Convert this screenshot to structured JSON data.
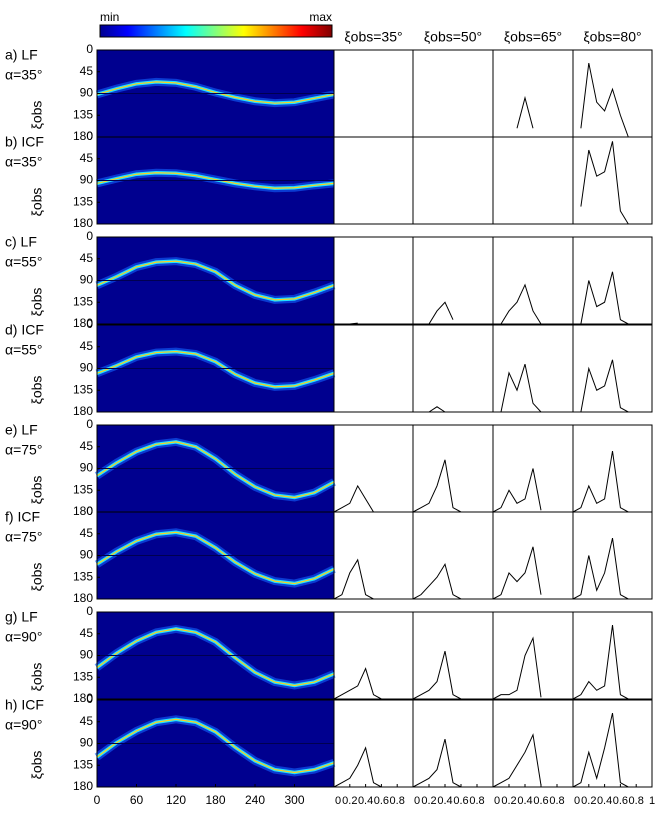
{
  "colorbar": {
    "min_label": "min",
    "max_label": "max"
  },
  "column_headers": [
    "ξobs=35°",
    "ξobs=50°",
    "ξobs=65°",
    "ξobs=80°"
  ],
  "heatmap_axes": {
    "ylabel": "ξobs",
    "xlim": [
      0,
      360
    ],
    "ylim": [
      0,
      180
    ],
    "xticks": [
      0,
      60,
      120,
      180,
      240,
      300
    ],
    "yticks": [
      0,
      45,
      90,
      135,
      180
    ],
    "ridge_phi": [
      0,
      30,
      60,
      90,
      120,
      150,
      180,
      210,
      240,
      270,
      300,
      330,
      360
    ]
  },
  "profile_axes": {
    "xlim": [
      0,
      1
    ],
    "ylim": [
      0,
      1
    ],
    "xticks": [
      0,
      0.2,
      0.4,
      0.6,
      0.8,
      1
    ],
    "x": [
      0,
      0.1,
      0.2,
      0.3,
      0.4,
      0.5,
      0.6,
      0.7,
      0.8,
      0.9,
      1
    ]
  },
  "rows": [
    {
      "label": "a) LF",
      "alpha": "α=35°",
      "ridge": [
        92,
        80,
        70,
        66,
        68,
        76,
        88,
        98,
        106,
        110,
        108,
        100,
        92
      ],
      "profiles": [
        [],
        [],
        [
          null,
          null,
          null,
          0.1,
          0.45,
          0.1,
          null,
          null,
          null,
          null,
          null
        ],
        [
          null,
          0.1,
          0.85,
          0.4,
          0.3,
          0.55,
          0.25,
          0.0,
          null,
          null,
          null
        ]
      ]
    },
    {
      "label": "b) ICF",
      "alpha": "α=35°",
      "ridge": [
        96,
        86,
        77,
        74,
        75,
        80,
        88,
        96,
        102,
        106,
        105,
        100,
        96
      ],
      "profiles": [
        [],
        [],
        [
          null,
          null,
          null,
          null,
          0.01,
          null,
          null,
          null,
          null,
          null,
          null
        ],
        [
          null,
          0.2,
          0.85,
          0.55,
          0.6,
          0.95,
          0.15,
          0.0,
          null,
          null,
          null
        ]
      ]
    },
    {
      "label": "c) LF",
      "alpha": "α=55°",
      "ridge": [
        100,
        82,
        62,
        52,
        50,
        56,
        72,
        100,
        120,
        130,
        128,
        115,
        100
      ],
      "profiles": [
        [
          null,
          0.0,
          0.0,
          0.01,
          null,
          null,
          null,
          null,
          null,
          null,
          null
        ],
        [
          null,
          null,
          0.0,
          0.15,
          0.25,
          0.05,
          null,
          null,
          null,
          null,
          null
        ],
        [
          null,
          0.0,
          0.15,
          0.25,
          0.45,
          0.15,
          0.0,
          null,
          null,
          null,
          null
        ],
        [
          null,
          0.0,
          0.5,
          0.2,
          0.25,
          0.6,
          0.05,
          0.0,
          null,
          null,
          null
        ]
      ]
    },
    {
      "label": "d) ICF",
      "alpha": "α=55°",
      "ridge": [
        100,
        84,
        66,
        57,
        55,
        60,
        76,
        102,
        120,
        128,
        126,
        114,
        100
      ],
      "profiles": [
        [],
        [
          null,
          null,
          0.0,
          0.06,
          0.0,
          null,
          null,
          null,
          null,
          null,
          null
        ],
        [
          null,
          0.0,
          0.45,
          0.25,
          0.55,
          0.1,
          0.0,
          null,
          null,
          null,
          null
        ],
        [
          null,
          0.0,
          0.5,
          0.25,
          0.3,
          0.6,
          0.05,
          0.0,
          null,
          null,
          null
        ]
      ]
    },
    {
      "label": "e) LF",
      "alpha": "α=75°",
      "ridge": [
        105,
        78,
        55,
        40,
        35,
        45,
        70,
        102,
        128,
        145,
        150,
        140,
        118
      ],
      "profiles": [
        [
          0.0,
          0.05,
          0.1,
          0.3,
          0.15,
          0.0,
          null,
          null,
          null,
          null,
          null
        ],
        [
          0.0,
          0.05,
          0.1,
          0.3,
          0.6,
          0.05,
          0.0,
          null,
          null,
          null,
          null
        ],
        [
          0.0,
          0.05,
          0.25,
          0.1,
          0.15,
          0.5,
          0.02,
          null,
          null,
          null,
          null
        ],
        [
          0.0,
          0.05,
          0.3,
          0.1,
          0.15,
          0.7,
          0.05,
          0.0,
          null,
          null,
          null
        ]
      ]
    },
    {
      "label": "f) ICF",
      "alpha": "α=75°",
      "ridge": [
        108,
        82,
        60,
        46,
        42,
        50,
        74,
        104,
        128,
        143,
        148,
        138,
        118
      ],
      "profiles": [
        [
          0.0,
          0.05,
          0.3,
          0.45,
          0.05,
          0.0,
          null,
          null,
          null,
          null,
          null
        ],
        [
          0.0,
          0.05,
          0.15,
          0.25,
          0.4,
          0.05,
          0.0,
          null,
          null,
          null,
          null
        ],
        [
          0.0,
          0.05,
          0.3,
          0.2,
          0.3,
          0.6,
          0.05,
          null,
          null,
          null,
          null
        ],
        [
          0.0,
          0.05,
          0.5,
          0.1,
          0.3,
          0.7,
          0.05,
          0.0,
          null,
          null,
          null
        ]
      ]
    },
    {
      "label": "g) LF",
      "alpha": "α=90°",
      "ridge": [
        115,
        85,
        60,
        42,
        35,
        42,
        62,
        95,
        125,
        145,
        152,
        145,
        128
      ],
      "profiles": [
        [
          0.0,
          0.05,
          0.1,
          0.15,
          0.35,
          0.05,
          0.0,
          null,
          null,
          null,
          null
        ],
        [
          0.0,
          0.05,
          0.1,
          0.2,
          0.55,
          0.05,
          0.0,
          null,
          null,
          null,
          null
        ],
        [
          0.0,
          0.05,
          0.05,
          0.1,
          0.5,
          0.7,
          0.02,
          null,
          null,
          null,
          null
        ],
        [
          0.0,
          0.05,
          0.2,
          0.1,
          0.15,
          0.85,
          0.05,
          0.0,
          null,
          null,
          null
        ]
      ]
    },
    {
      "label": "h) ICF",
      "alpha": "α=90°",
      "ridge": [
        118,
        88,
        64,
        46,
        40,
        46,
        66,
        98,
        126,
        144,
        150,
        144,
        130
      ],
      "profiles": [
        [
          0.0,
          0.05,
          0.1,
          0.25,
          0.45,
          0.05,
          0.0,
          null,
          null,
          null,
          null
        ],
        [
          0.0,
          0.05,
          0.1,
          0.2,
          0.55,
          0.05,
          0.0,
          null,
          null,
          null,
          null
        ],
        [
          0.0,
          0.05,
          0.1,
          0.25,
          0.4,
          0.6,
          0.02,
          null,
          null,
          null,
          null
        ],
        [
          0.0,
          0.05,
          0.4,
          0.1,
          0.45,
          0.85,
          0.05,
          0.0,
          null,
          null,
          null
        ]
      ]
    }
  ]
}
